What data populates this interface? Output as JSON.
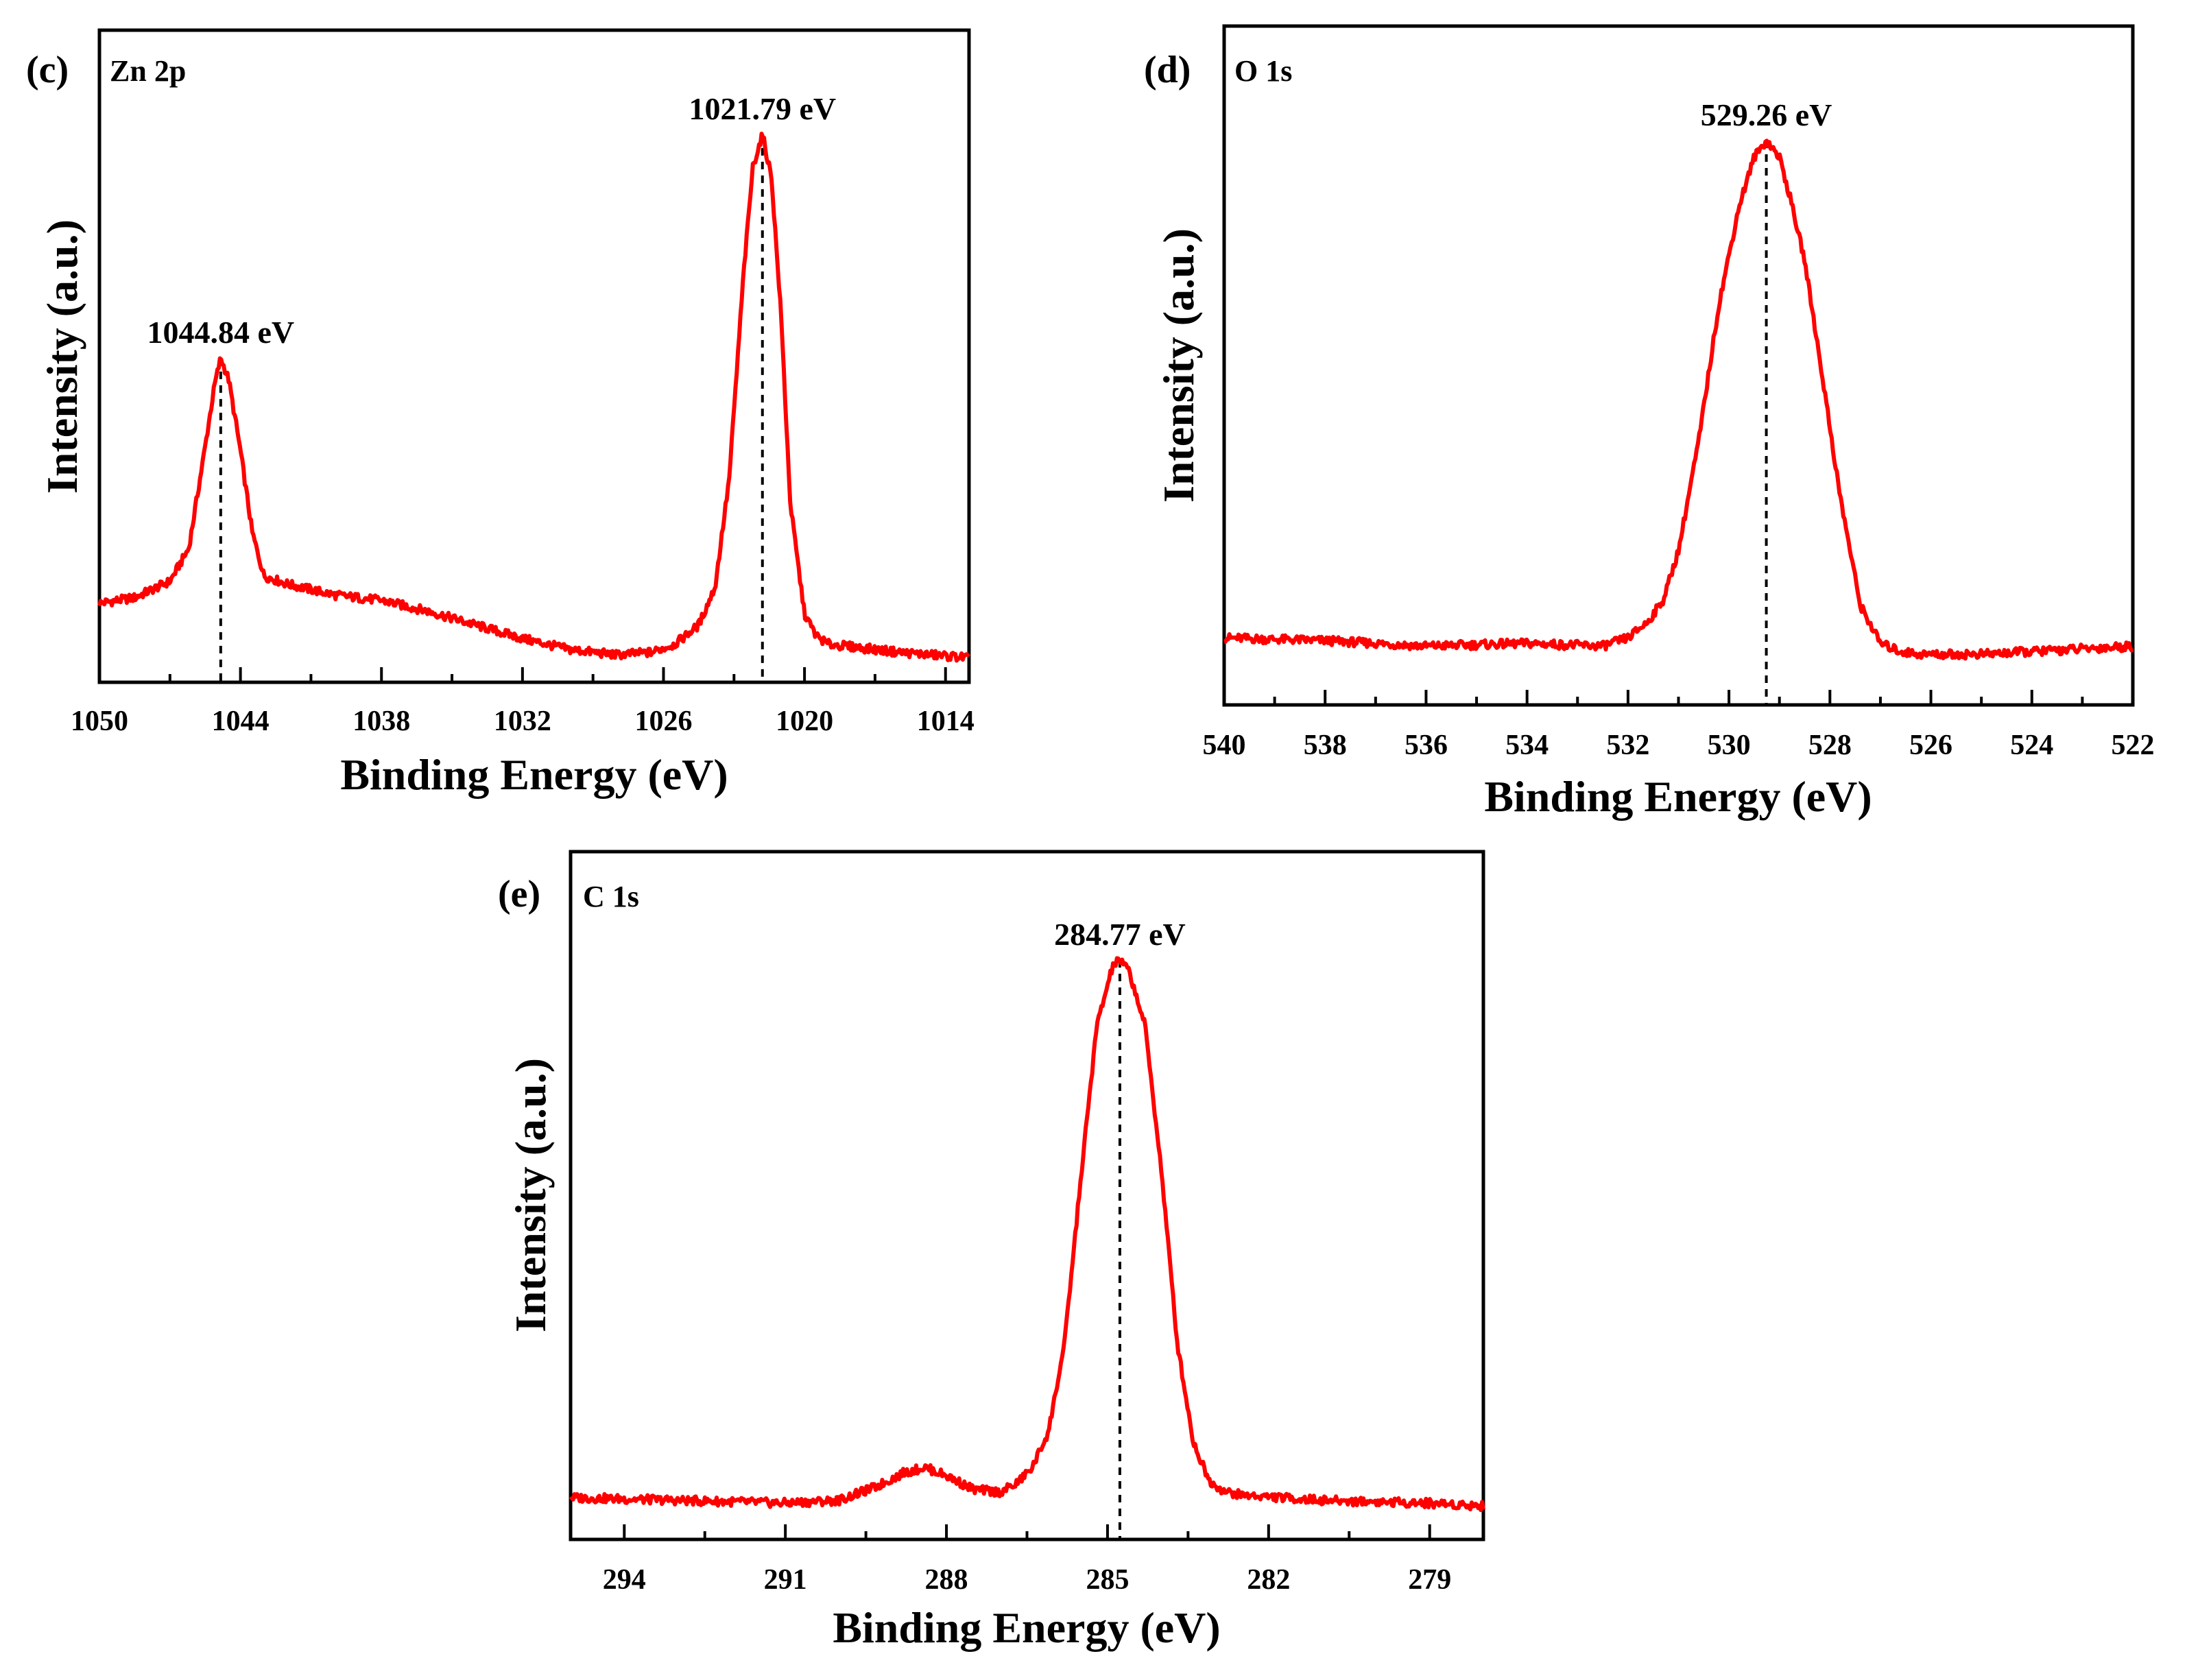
{
  "chart_data": [
    {
      "type": "line",
      "panel_label": "(c)",
      "element": "Zn 2p",
      "xlabel": "Binding Energy (eV)",
      "ylabel": "Intensity (a.u.)",
      "xlim": [
        1050,
        1013
      ],
      "ylim": [
        0,
        100
      ],
      "x_ticks": [
        1050,
        1044,
        1038,
        1032,
        1026,
        1020,
        1014
      ],
      "x_tick_labels": [
        "1050",
        "1044",
        "1038",
        "1032",
        "1026",
        "1020",
        "1014"
      ],
      "minor_ticks": [
        1047,
        1041,
        1035,
        1029,
        1023,
        1017
      ],
      "series": [
        {
          "name": "Zn 2p",
          "color": "#ff0000",
          "x": [
            1050,
            1048.5,
            1047,
            1046.2,
            1045.6,
            1045.1,
            1044.84,
            1044.5,
            1044.0,
            1043.5,
            1043.0,
            1042.0,
            1040,
            1038,
            1036,
            1034,
            1032,
            1030,
            1028,
            1026.5,
            1025.5,
            1024.5,
            1023.8,
            1023.2,
            1022.6,
            1022.2,
            1021.79,
            1021.4,
            1021.0,
            1020.6,
            1020.0,
            1019.5,
            1019.0,
            1018,
            1016,
            1013
          ],
          "values": [
            12,
            13,
            16,
            22,
            38,
            52,
            57,
            53,
            40,
            25,
            17,
            15.5,
            13.5,
            12.5,
            10.5,
            8,
            5.5,
            3.5,
            2.5,
            3,
            4.5,
            8,
            15,
            35,
            72,
            92,
            98,
            90,
            65,
            30,
            10,
            6,
            4.5,
            4,
            3,
            2
          ]
        }
      ],
      "peaks": [
        {
          "x": 1044.84,
          "label": "1044.84 eV"
        },
        {
          "x": 1021.79,
          "label": "1021.79 eV"
        }
      ]
    },
    {
      "type": "line",
      "panel_label": "(d)",
      "element": "O 1s",
      "xlabel": "Binding Energy (eV)",
      "ylabel": "Intensity (a.u.)",
      "xlim": [
        540,
        522
      ],
      "ylim": [
        0,
        100
      ],
      "x_ticks": [
        540,
        538,
        536,
        534,
        532,
        530,
        528,
        526,
        524,
        522
      ],
      "x_tick_labels": [
        "540",
        "538",
        "536",
        "534",
        "532",
        "530",
        "528",
        "526",
        "524",
        "522"
      ],
      "minor_ticks": [
        539,
        537,
        535,
        533,
        531,
        529,
        527,
        525,
        523
      ],
      "series": [
        {
          "name": "O 1s",
          "color": "#ff0000",
          "x": [
            540,
            538,
            536,
            534,
            532.5,
            532,
            531.6,
            531.3,
            531.0,
            530.6,
            530.2,
            529.8,
            529.5,
            529.26,
            529.0,
            528.8,
            528.5,
            528.2,
            527.8,
            527.4,
            527.0,
            526.6,
            526.2,
            525,
            523,
            522
          ],
          "values": [
            9,
            8.5,
            7.5,
            8,
            7.5,
            9,
            12,
            16,
            25,
            45,
            70,
            88,
            97,
            100,
            97,
            90,
            78,
            60,
            35,
            15,
            8,
            6.5,
            6,
            6,
            7,
            7.5
          ]
        }
      ],
      "peaks": [
        {
          "x": 529.26,
          "label": "529.26 eV"
        }
      ]
    },
    {
      "type": "line",
      "panel_label": "(e)",
      "element": "C 1s",
      "xlabel": "Binding Energy (eV)",
      "ylabel": "Intensity (a.u.)",
      "xlim": [
        295,
        278
      ],
      "ylim": [
        0,
        100
      ],
      "x_ticks": [
        294,
        291,
        288,
        285,
        282,
        279
      ],
      "x_tick_labels": [
        "294",
        "291",
        "288",
        "285",
        "282",
        "279"
      ],
      "minor_ticks": [
        295,
        292.5,
        289.5,
        286.5,
        283.5,
        280.5
      ],
      "series": [
        {
          "name": "C 1s",
          "color": "#ff0000",
          "x": [
            295,
            293,
            291,
            290,
            289.3,
            288.8,
            288.4,
            288.0,
            287.5,
            287.0,
            286.7,
            286.4,
            286.1,
            285.8,
            285.5,
            285.2,
            284.9,
            284.77,
            284.6,
            284.3,
            284.0,
            283.7,
            283.4,
            283.1,
            282.8,
            282.5,
            281,
            279,
            278
          ],
          "values": [
            2,
            1.5,
            1,
            1.5,
            4,
            6.5,
            7.5,
            6,
            3.5,
            3,
            4.5,
            7.5,
            14,
            30,
            60,
            88,
            99,
            100,
            98,
            88,
            62,
            30,
            12,
            5,
            3,
            2.5,
            1.5,
            1,
            0.5
          ]
        }
      ],
      "peaks": [
        {
          "x": 284.77,
          "label": "284.77 eV"
        }
      ]
    }
  ]
}
